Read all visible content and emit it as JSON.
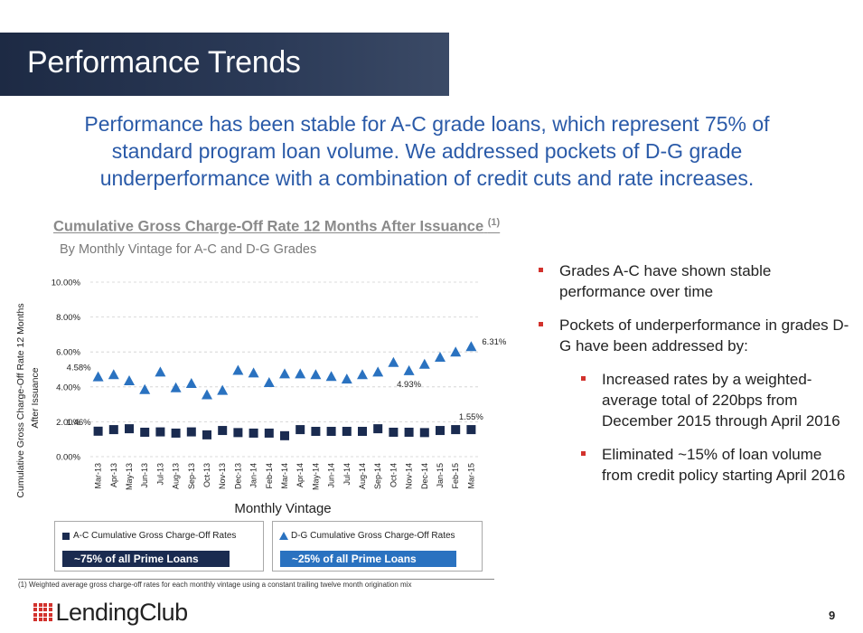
{
  "page": {
    "title": "Performance Trends",
    "headline": "Performance has been stable for A-C grade loans, which represent 75% of standard program loan volume. We addressed pockets of D-G grade underperformance with a combination of credit cuts and rate increases.",
    "page_number": "9",
    "footnote": "(1) Weighted average gross charge-off rates for each monthly vintage using a constant trailing twelve month origination mix",
    "logo_text": "LendingClub"
  },
  "chart_header": {
    "title": "Cumulative Gross Charge-Off Rate 12 Months After Issuance",
    "title_sup": "(1)",
    "subtitle": "By Monthly Vintage for A-C and D-G Grades"
  },
  "legend": {
    "ac_label": "A-C Cumulative Gross Charge-Off Rates",
    "ac_share": "~75% of all Prime Loans",
    "dg_label": "D-G Cumulative Gross Charge-Off Rates",
    "dg_share": "~25% of all Prime Loans"
  },
  "bullets": {
    "b1": "Grades A-C have shown stable performance over time",
    "b2": "Pockets of underperformance in grades D-G have been addressed by:",
    "sub1": "Increased rates by a weighted-average total of 220bps from December 2015 through April 2016",
    "sub2": "Eliminated ~15% of loan volume from credit policy starting April 2016"
  },
  "colors": {
    "ac": "#1a2b50",
    "dg": "#2a72c0",
    "accent_red": "#d2322d",
    "headline_blue": "#2a5aa8"
  },
  "chart_data": {
    "type": "scatter",
    "title": "Cumulative Gross Charge-Off Rate 12 Months After Issuance",
    "xlabel": "Monthly Vintage",
    "ylabel": "Cumulative Gross Charge-Off Rate 12 Months After Issuance",
    "ylim": [
      0,
      10
    ],
    "y_ticks": [
      "0.00%",
      "2.00%",
      "4.00%",
      "6.00%",
      "8.00%",
      "10.00%"
    ],
    "categories": [
      "Mar-13",
      "Apr-13",
      "May-13",
      "Jun-13",
      "Jul-13",
      "Aug-13",
      "Sep-13",
      "Oct-13",
      "Nov-13",
      "Dec-13",
      "Jan-14",
      "Feb-14",
      "Mar-14",
      "Apr-14",
      "May-14",
      "Jun-14",
      "Jul-14",
      "Aug-14",
      "Sep-14",
      "Oct-14",
      "Nov-14",
      "Dec-14",
      "Jan-15",
      "Feb-15",
      "Mar-15"
    ],
    "series": [
      {
        "name": "A-C Cumulative Gross Charge-Off Rates",
        "marker": "square",
        "values": [
          1.46,
          1.55,
          1.6,
          1.4,
          1.42,
          1.35,
          1.42,
          1.25,
          1.5,
          1.38,
          1.35,
          1.35,
          1.2,
          1.55,
          1.45,
          1.45,
          1.45,
          1.45,
          1.6,
          1.4,
          1.4,
          1.38,
          1.5,
          1.55,
          1.55
        ]
      },
      {
        "name": "D-G Cumulative Gross Charge-Off Rates",
        "marker": "triangle",
        "values": [
          4.58,
          4.7,
          4.35,
          3.85,
          4.85,
          3.95,
          4.2,
          3.55,
          3.8,
          4.95,
          4.8,
          4.25,
          4.75,
          4.75,
          4.7,
          4.6,
          4.45,
          4.7,
          4.85,
          5.4,
          4.93,
          5.3,
          5.7,
          6.0,
          6.31
        ]
      }
    ],
    "data_labels": [
      {
        "series": 0,
        "index": 0,
        "text": "1.46%",
        "pos": "left"
      },
      {
        "series": 0,
        "index": 24,
        "text": "1.55%",
        "pos": "above"
      },
      {
        "series": 1,
        "index": 0,
        "text": "4.58%",
        "pos": "left"
      },
      {
        "series": 1,
        "index": 20,
        "text": "4.93%",
        "pos": "below"
      },
      {
        "series": 1,
        "index": 24,
        "text": "6.31%",
        "pos": "right"
      }
    ]
  }
}
